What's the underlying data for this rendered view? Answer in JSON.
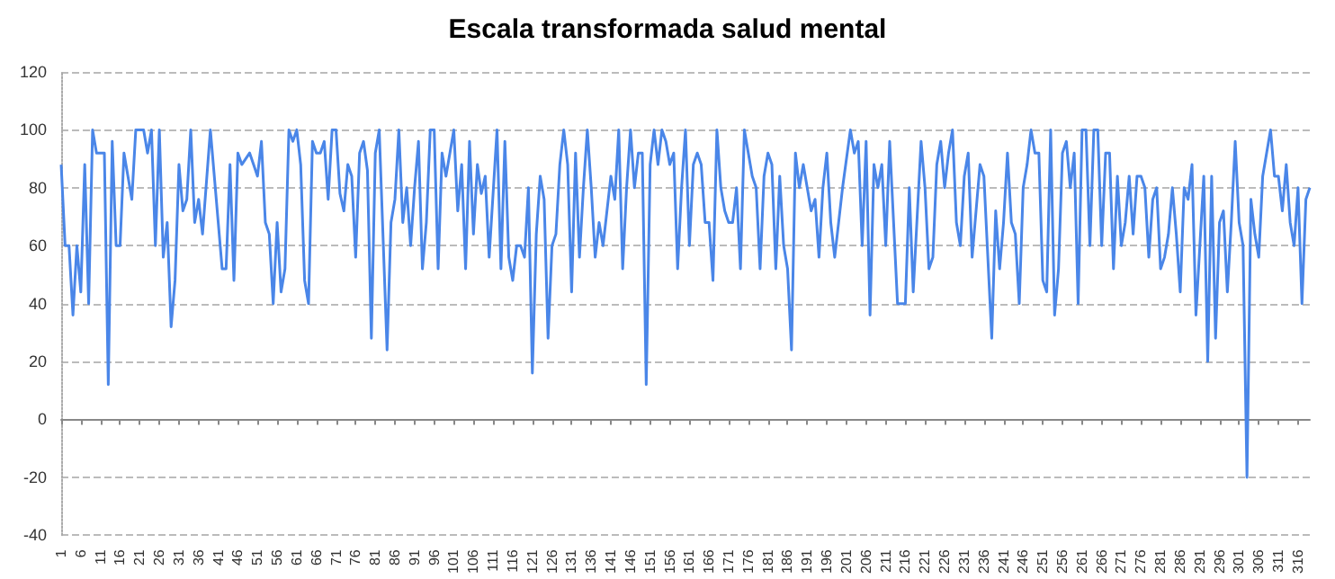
{
  "chart_data": {
    "type": "line",
    "title": "Escala transformada salud mental",
    "x": [
      1,
      2,
      3,
      4,
      5,
      6,
      7,
      8,
      9,
      10,
      12,
      13,
      14,
      15,
      16,
      17,
      19,
      20,
      22,
      23,
      24,
      25,
      26,
      27,
      28,
      29,
      30,
      31,
      32,
      33,
      34,
      35,
      36,
      37,
      39,
      41,
      42,
      43,
      44,
      45,
      46,
      47,
      49,
      50,
      51,
      52,
      53,
      54,
      55,
      56,
      57,
      58,
      59,
      60,
      61,
      62,
      63,
      64,
      65,
      66,
      67,
      68,
      69,
      70,
      71,
      72,
      73,
      74,
      75,
      76,
      77,
      78,
      79,
      80,
      81,
      82,
      84,
      85,
      86,
      87,
      88,
      89,
      90,
      91,
      92,
      93,
      94,
      95,
      96,
      97,
      98,
      99,
      101,
      102,
      103,
      104,
      105,
      106,
      107,
      108,
      109,
      110,
      112,
      113,
      114,
      115,
      116,
      117,
      118,
      119,
      120,
      121,
      122,
      123,
      124,
      125,
      126,
      127,
      128,
      129,
      130,
      131,
      132,
      133,
      134,
      135,
      136,
      137,
      138,
      139,
      140,
      141,
      142,
      143,
      144,
      145,
      146,
      147,
      148,
      149,
      150,
      151,
      152,
      153,
      154,
      155,
      156,
      157,
      158,
      159,
      160,
      161,
      162,
      163,
      164,
      165,
      166,
      167,
      168,
      169,
      170,
      171,
      172,
      173,
      174,
      175,
      176,
      177,
      178,
      179,
      180,
      181,
      182,
      183,
      184,
      185,
      186,
      187,
      188,
      189,
      190,
      191,
      192,
      193,
      194,
      195,
      196,
      197,
      198,
      199,
      200,
      202,
      203,
      204,
      205,
      206,
      207,
      208,
      209,
      210,
      211,
      212,
      214,
      216,
      217,
      218,
      220,
      221,
      222,
      223,
      224,
      225,
      226,
      227,
      228,
      229,
      230,
      231,
      232,
      233,
      234,
      235,
      236,
      238,
      239,
      240,
      241,
      242,
      243,
      244,
      245,
      246,
      247,
      248,
      249,
      250,
      251,
      252,
      253,
      254,
      255,
      256,
      257,
      258,
      259,
      260,
      261,
      262,
      263,
      264,
      265,
      266,
      267,
      268,
      269,
      270,
      271,
      272,
      273,
      274,
      275,
      276,
      277,
      278,
      279,
      280,
      281,
      282,
      283,
      284,
      285,
      286,
      287,
      288,
      289,
      290,
      291,
      292,
      293,
      294,
      295,
      296,
      297,
      298,
      299,
      300,
      301,
      302,
      303,
      304,
      305,
      306,
      307,
      308,
      309,
      310,
      311,
      312,
      313,
      314,
      315,
      316,
      317,
      318,
      319
    ],
    "series": [
      {
        "color": "#4a86e8",
        "values": [
          88,
          60,
          60,
          36,
          60,
          44,
          88,
          40,
          100,
          92,
          92,
          12,
          96,
          60,
          60,
          92,
          76,
          100,
          100,
          92,
          100,
          60,
          100,
          56,
          68,
          32,
          48,
          88,
          72,
          76,
          100,
          68,
          76,
          64,
          100,
          68,
          52,
          52,
          88,
          48,
          92,
          88,
          92,
          88,
          84,
          96,
          68,
          64,
          40,
          68,
          44,
          52,
          100,
          96,
          100,
          88,
          48,
          40,
          96,
          92,
          92,
          96,
          76,
          100,
          100,
          78,
          72,
          88,
          84,
          56,
          92,
          96,
          86,
          28,
          92,
          100,
          24,
          68,
          76,
          100,
          68,
          80,
          60,
          80,
          96,
          52,
          68,
          100,
          100,
          52,
          92,
          84,
          100,
          72,
          88,
          52,
          96,
          64,
          88,
          78,
          84,
          56,
          100,
          52,
          96,
          56,
          48,
          60,
          60,
          56,
          80,
          16,
          64,
          84,
          76,
          28,
          60,
          64,
          88,
          100,
          88,
          44,
          92,
          56,
          80,
          100,
          80,
          56,
          68,
          60,
          72,
          84,
          76,
          100,
          52,
          80,
          100,
          80,
          92,
          92,
          12,
          88,
          100,
          88,
          100,
          96,
          88,
          92,
          52,
          80,
          100,
          60,
          88,
          92,
          88,
          68,
          68,
          48,
          100,
          80,
          72,
          68,
          68,
          80,
          52,
          100,
          92,
          84,
          80,
          52,
          84,
          92,
          88,
          52,
          84,
          60,
          52,
          24,
          92,
          80,
          88,
          80,
          72,
          76,
          56,
          80,
          92,
          68,
          56,
          68,
          80,
          100,
          92,
          96,
          60,
          96,
          36,
          88,
          80,
          88,
          60,
          96,
          40,
          40,
          80,
          44,
          96,
          80,
          52,
          56,
          88,
          96,
          80,
          92,
          100,
          68,
          60,
          84,
          92,
          56,
          72,
          88,
          84,
          28,
          72,
          52,
          68,
          92,
          68,
          64,
          40,
          80,
          88,
          100,
          92,
          92,
          48,
          44,
          100,
          36,
          52,
          92,
          96,
          80,
          92,
          40,
          100,
          100,
          60,
          100,
          100,
          60,
          92,
          92,
          52,
          84,
          60,
          68,
          84,
          64,
          84,
          84,
          80,
          56,
          76,
          80,
          52,
          56,
          64,
          80,
          64,
          44,
          80,
          76,
          88,
          36,
          60,
          84,
          20,
          84,
          28,
          68,
          72,
          44,
          68,
          96,
          68,
          60,
          -20,
          76,
          64,
          56,
          84,
          92,
          100,
          84,
          84,
          72,
          88,
          68,
          60,
          80,
          40,
          76,
          80
        ]
      }
    ],
    "xlim": [
      1,
      319
    ],
    "xticks": [
      1,
      6,
      11,
      16,
      21,
      26,
      31,
      36,
      41,
      46,
      51,
      56,
      61,
      66,
      71,
      76,
      81,
      86,
      91,
      96,
      101,
      106,
      111,
      116,
      121,
      126,
      131,
      136,
      141,
      146,
      151,
      156,
      161,
      166,
      171,
      176,
      181,
      186,
      191,
      196,
      201,
      206,
      211,
      216,
      221,
      226,
      231,
      236,
      241,
      246,
      251,
      256,
      261,
      266,
      271,
      276,
      281,
      286,
      291,
      296,
      301,
      306,
      311,
      316
    ],
    "ylim": [
      -40,
      120
    ],
    "yticks": [
      -40,
      -20,
      0,
      20,
      40,
      60,
      80,
      100,
      120
    ],
    "grid": "y",
    "marker": "none",
    "line_style": "solid"
  }
}
